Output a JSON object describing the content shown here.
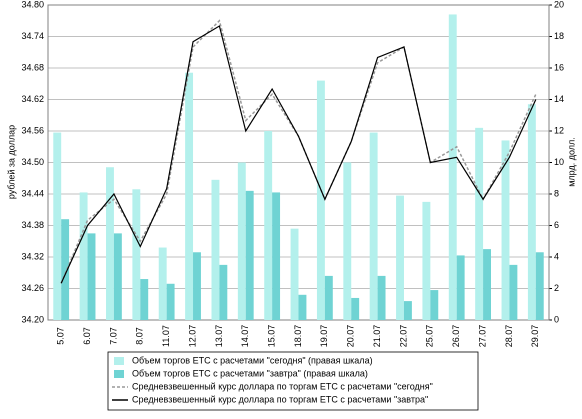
{
  "chart_data": {
    "type": "bar",
    "y_label": "рублей за доллар",
    "y2_label": "млрд. долл.",
    "categories": [
      "5.07",
      "6.07",
      "7.07",
      "8.07",
      "11.07",
      "12.07",
      "13.07",
      "14.07",
      "15.07",
      "18.07",
      "19.07",
      "20.07",
      "21.07",
      "22.07",
      "25.07",
      "26.07",
      "27.07",
      "28.07",
      "29.07"
    ],
    "series": [
      {
        "name": "Объем торгов ЕТС с расчетами \"сегодня\" (правая шкала)",
        "type": "bar",
        "axis": "y2",
        "color": "#b3f0ec",
        "values": [
          11.9,
          8.1,
          9.7,
          8.3,
          4.6,
          15.7,
          8.9,
          10.0,
          12.0,
          5.8,
          15.2,
          10.0,
          11.9,
          7.9,
          7.5,
          19.4,
          12.2,
          11.4,
          13.7
        ]
      },
      {
        "name": "Объем торгов ЕТС с расчетами \"завтра\" (правая шкала)",
        "type": "bar",
        "axis": "y2",
        "color": "#6fd3d3",
        "values": [
          6.4,
          5.5,
          5.5,
          2.6,
          2.3,
          4.3,
          3.5,
          8.2,
          8.1,
          1.6,
          2.8,
          1.4,
          2.8,
          1.2,
          1.9,
          4.1,
          4.5,
          3.5,
          4.3
        ]
      },
      {
        "name": "Средневзвешенный курс доллара по торгам ЕТС с расчетами \"сегодня\"",
        "type": "line",
        "color": "#999999",
        "dashed": true,
        "values": [
          34.27,
          34.39,
          34.43,
          34.35,
          34.44,
          34.72,
          34.77,
          34.58,
          34.63,
          34.55,
          34.43,
          34.54,
          34.69,
          34.72,
          34.5,
          34.53,
          34.43,
          34.52,
          34.63
        ]
      },
      {
        "name": "Средневзвешенный курс доллара по торгам ЕТС с расчетами \"завтра\"",
        "type": "line",
        "color": "#000000",
        "dashed": false,
        "values": [
          34.27,
          34.38,
          34.44,
          34.34,
          34.45,
          34.73,
          34.76,
          34.56,
          34.64,
          34.55,
          34.43,
          34.54,
          34.7,
          34.72,
          34.5,
          34.51,
          34.43,
          34.51,
          34.62
        ]
      }
    ],
    "ylim": [
      34.2,
      34.8
    ],
    "yticks": [
      {
        "value": 34.2,
        "label": "34.20"
      },
      34.26,
      34.32,
      34.38,
      34.44,
      {
        "value": 34.5,
        "label": "34.50"
      },
      34.56,
      34.62,
      34.68,
      34.74,
      {
        "value": 34.8,
        "label": "34.80"
      }
    ],
    "y2lim": [
      0,
      20
    ],
    "y2ticks": [
      0,
      2,
      4,
      6,
      8,
      10,
      12,
      14,
      16,
      18,
      20
    ],
    "grid": true
  }
}
